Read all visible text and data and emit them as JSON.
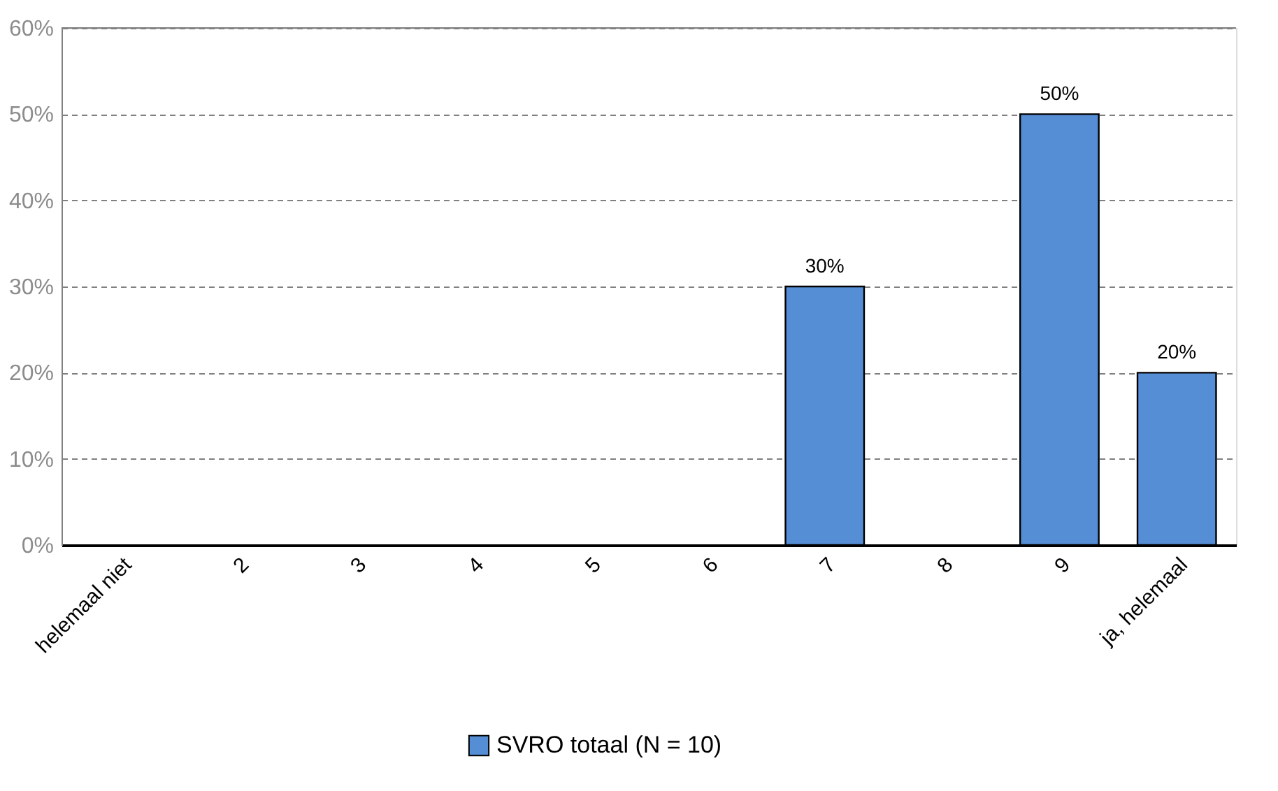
{
  "chart_data": {
    "type": "bar",
    "categories": [
      "helemaal niet",
      "2",
      "3",
      "4",
      "5",
      "6",
      "7",
      "8",
      "9",
      "ja, helemaal"
    ],
    "series": [
      {
        "name": "SVRO totaal (N = 10)",
        "color": "#558ed5",
        "values": [
          0,
          0,
          0,
          0,
          0,
          0,
          30,
          0,
          50,
          20
        ],
        "value_labels": [
          null,
          null,
          null,
          null,
          null,
          null,
          "30%",
          null,
          "50%",
          "20%"
        ]
      }
    ],
    "ylim": [
      0,
      60
    ],
    "yticks": [
      {
        "value": 0,
        "label": "0%"
      },
      {
        "value": 10,
        "label": "10%"
      },
      {
        "value": 20,
        "label": "20%"
      },
      {
        "value": 30,
        "label": "30%"
      },
      {
        "value": 40,
        "label": "40%"
      },
      {
        "value": 50,
        "label": "50%"
      },
      {
        "value": 60,
        "label": "60%"
      }
    ],
    "grid": "y",
    "legend": "bottom"
  }
}
